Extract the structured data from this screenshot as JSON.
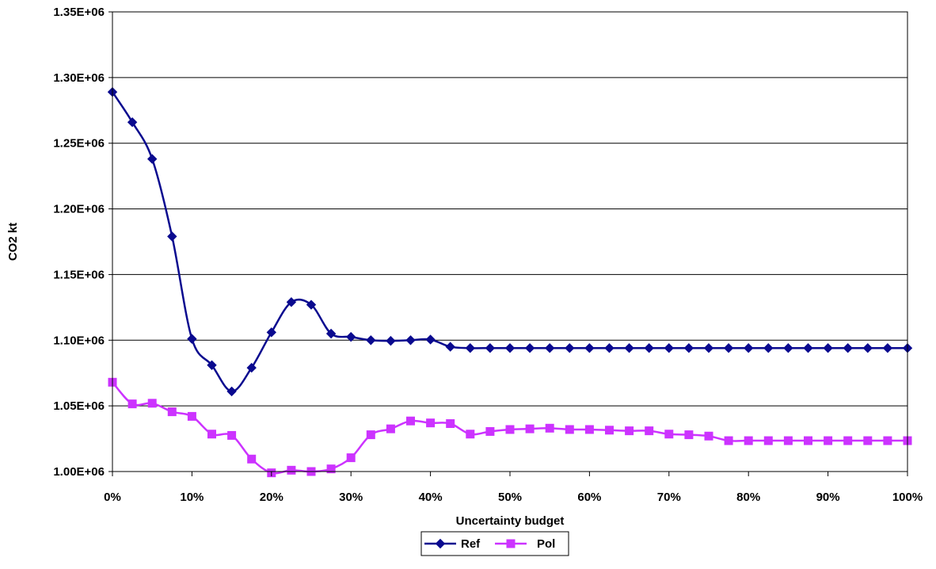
{
  "chart_data": {
    "type": "line",
    "title": "",
    "xlabel": "Uncertainty budget",
    "ylabel": "CO2 kt",
    "xlim": [
      0,
      1
    ],
    "ylim": [
      1000000,
      1350000
    ],
    "x_ticks": [
      0,
      0.1,
      0.2,
      0.3,
      0.4,
      0.5,
      0.6,
      0.7,
      0.8,
      0.9,
      1.0
    ],
    "x_tick_labels": [
      "0%",
      "10%",
      "20%",
      "30%",
      "40%",
      "50%",
      "60%",
      "70%",
      "80%",
      "90%",
      "100%"
    ],
    "y_ticks": [
      1000000,
      1050000,
      1100000,
      1150000,
      1200000,
      1250000,
      1300000,
      1350000
    ],
    "y_tick_labels": [
      "1.00E+06",
      "1.05E+06",
      "1.10E+06",
      "1.15E+06",
      "1.20E+06",
      "1.25E+06",
      "1.30E+06",
      "1.35E+06"
    ],
    "grid": "horizontal",
    "legend_position": "bottom",
    "x": [
      0,
      0.025,
      0.05,
      0.075,
      0.1,
      0.125,
      0.15,
      0.175,
      0.2,
      0.225,
      0.25,
      0.275,
      0.3,
      0.325,
      0.35,
      0.375,
      0.4,
      0.425,
      0.45,
      0.475,
      0.5,
      0.525,
      0.55,
      0.575,
      0.6,
      0.625,
      0.65,
      0.675,
      0.7,
      0.725,
      0.75,
      0.775,
      0.8,
      0.825,
      0.85,
      0.875,
      0.9,
      0.925,
      0.95,
      0.975,
      1.0
    ],
    "series": [
      {
        "name": "Ref",
        "color": "#0a0a8f",
        "marker": "diamond",
        "values": [
          1289000,
          1266000,
          1238000,
          1179000,
          1101000,
          1081000,
          1061000,
          1079000,
          1106000,
          1129000,
          1127000,
          1105000,
          1102500,
          1100000,
          1099500,
          1100000,
          1100500,
          1095000,
          1094000,
          1094000,
          1094000,
          1094000,
          1094000,
          1094000,
          1094000,
          1094000,
          1094000,
          1094000,
          1094000,
          1094000,
          1094000,
          1094000,
          1094000,
          1094000,
          1094000,
          1094000,
          1094000,
          1094000,
          1094000,
          1094000,
          1094000
        ]
      },
      {
        "name": "Pol",
        "color": "#cc33ff",
        "marker": "square",
        "values": [
          1068000,
          1051500,
          1052000,
          1045500,
          1042000,
          1028500,
          1027500,
          1009500,
          999000,
          1001000,
          1000000,
          1002000,
          1010500,
          1028000,
          1032500,
          1038500,
          1037000,
          1036500,
          1028500,
          1030500,
          1032000,
          1032500,
          1033000,
          1032000,
          1032000,
          1031500,
          1031000,
          1031000,
          1028500,
          1028000,
          1027000,
          1023500,
          1023500,
          1023500,
          1023500,
          1023500,
          1023500,
          1023500,
          1023500,
          1023500,
          1023500
        ]
      }
    ]
  }
}
